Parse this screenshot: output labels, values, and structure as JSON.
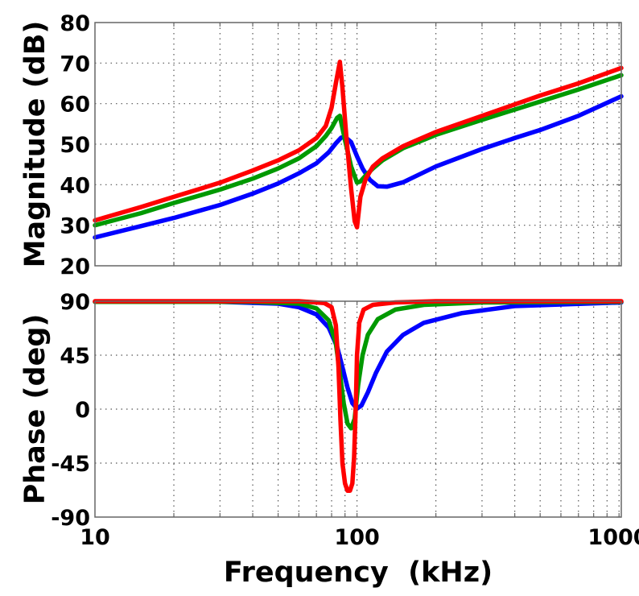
{
  "chart_data": [
    {
      "type": "line",
      "panel": "magnitude",
      "ylabel": "Magnitude (dB)",
      "xlabel": "",
      "xscale": "log",
      "xlim": [
        10,
        1020
      ],
      "ylim": [
        20,
        80
      ],
      "yticks": [
        20,
        30,
        40,
        50,
        60,
        70,
        80
      ],
      "yticklabels": [
        "20",
        "30",
        "40",
        "50",
        "60",
        "70",
        "80"
      ],
      "grid": true,
      "series": [
        {
          "name": "blue",
          "color": "#0000ff",
          "x": [
            10,
            15,
            20,
            30,
            40,
            50,
            60,
            70,
            78,
            83,
            87,
            90,
            95,
            100,
            105,
            112,
            120,
            130,
            150,
            200,
            300,
            400,
            500,
            700,
            1020
          ],
          "y": [
            27,
            29.8,
            31.8,
            35,
            37.8,
            40.3,
            42.8,
            45.3,
            48,
            50.2,
            51.6,
            51.8,
            50.5,
            47,
            44,
            41.2,
            39.6,
            39.5,
            40.6,
            44.5,
            48.8,
            51.5,
            53.5,
            57,
            61.8
          ]
        },
        {
          "name": "green",
          "color": "#009900",
          "x": [
            10,
            15,
            20,
            30,
            40,
            50,
            60,
            70,
            76,
            80,
            84,
            86,
            90,
            95,
            100,
            103,
            108,
            115,
            125,
            150,
            200,
            300,
            500,
            700,
            1020
          ],
          "y": [
            30,
            33,
            35.5,
            38.8,
            41.5,
            44,
            46.5,
            49.5,
            52,
            54,
            56.5,
            57,
            51,
            44.5,
            40.5,
            40.8,
            42.3,
            44,
            46,
            49,
            52.3,
            56,
            60.5,
            63.5,
            67
          ]
        },
        {
          "name": "red",
          "color": "#ff0000",
          "x": [
            10,
            15,
            20,
            30,
            40,
            50,
            60,
            70,
            76,
            80,
            83,
            86,
            88,
            91,
            95,
            98,
            100,
            103,
            108,
            115,
            125,
            150,
            200,
            300,
            500,
            700,
            1020
          ],
          "y": [
            31.2,
            34.5,
            37,
            40.5,
            43.5,
            46,
            48.5,
            51.5,
            54.5,
            59,
            65,
            70.3,
            64,
            52,
            39,
            31,
            29.5,
            37,
            41.5,
            44.5,
            46.5,
            49.5,
            53,
            57,
            62,
            65,
            68.8
          ]
        }
      ]
    },
    {
      "type": "line",
      "panel": "phase",
      "ylabel": "Phase (deg)",
      "xlabel": "Frequency  (kHz)",
      "xscale": "log",
      "xlim": [
        10,
        1020
      ],
      "ylim": [
        -90,
        90
      ],
      "xticks": [
        10,
        100,
        1000
      ],
      "xticklabels": [
        "10",
        "100",
        "1000"
      ],
      "yticks": [
        -90,
        -45,
        0,
        45,
        90
      ],
      "yticklabels": [
        "-90",
        "-45",
        "0",
        "45",
        "90"
      ],
      "grid": true,
      "series": [
        {
          "name": "blue",
          "color": "#0000ff",
          "x": [
            10,
            30,
            50,
            60,
            70,
            78,
            84,
            88,
            92,
            96,
            100,
            104,
            110,
            118,
            130,
            150,
            180,
            250,
            400,
            1020
          ],
          "y": [
            89.5,
            89.5,
            88,
            85,
            79,
            68,
            52,
            35,
            18,
            5,
            0.5,
            3,
            14,
            30,
            48,
            62,
            72,
            80,
            86,
            89
          ]
        },
        {
          "name": "green",
          "color": "#009900",
          "x": [
            10,
            40,
            60,
            70,
            78,
            83,
            86,
            89,
            92,
            95,
            98,
            101,
            105,
            110,
            120,
            140,
            180,
            300,
            1020
          ],
          "y": [
            89.5,
            89.5,
            88,
            84,
            74,
            55,
            30,
            5,
            -12,
            -16,
            -8,
            20,
            45,
            62,
            75,
            83,
            87,
            89,
            89.5
          ]
        },
        {
          "name": "red",
          "color": "#ff0000",
          "x": [
            10,
            60,
            75,
            80,
            83,
            85,
            86.5,
            88,
            90,
            92,
            94,
            96,
            97.5,
            99,
            100,
            102,
            106,
            115,
            140,
            200,
            1020
          ],
          "y": [
            90,
            90,
            88.5,
            85,
            70,
            35,
            -10,
            -45,
            -62,
            -68,
            -68,
            -62,
            -40,
            5,
            45,
            72,
            83,
            87,
            89,
            90,
            90
          ]
        }
      ]
    }
  ]
}
